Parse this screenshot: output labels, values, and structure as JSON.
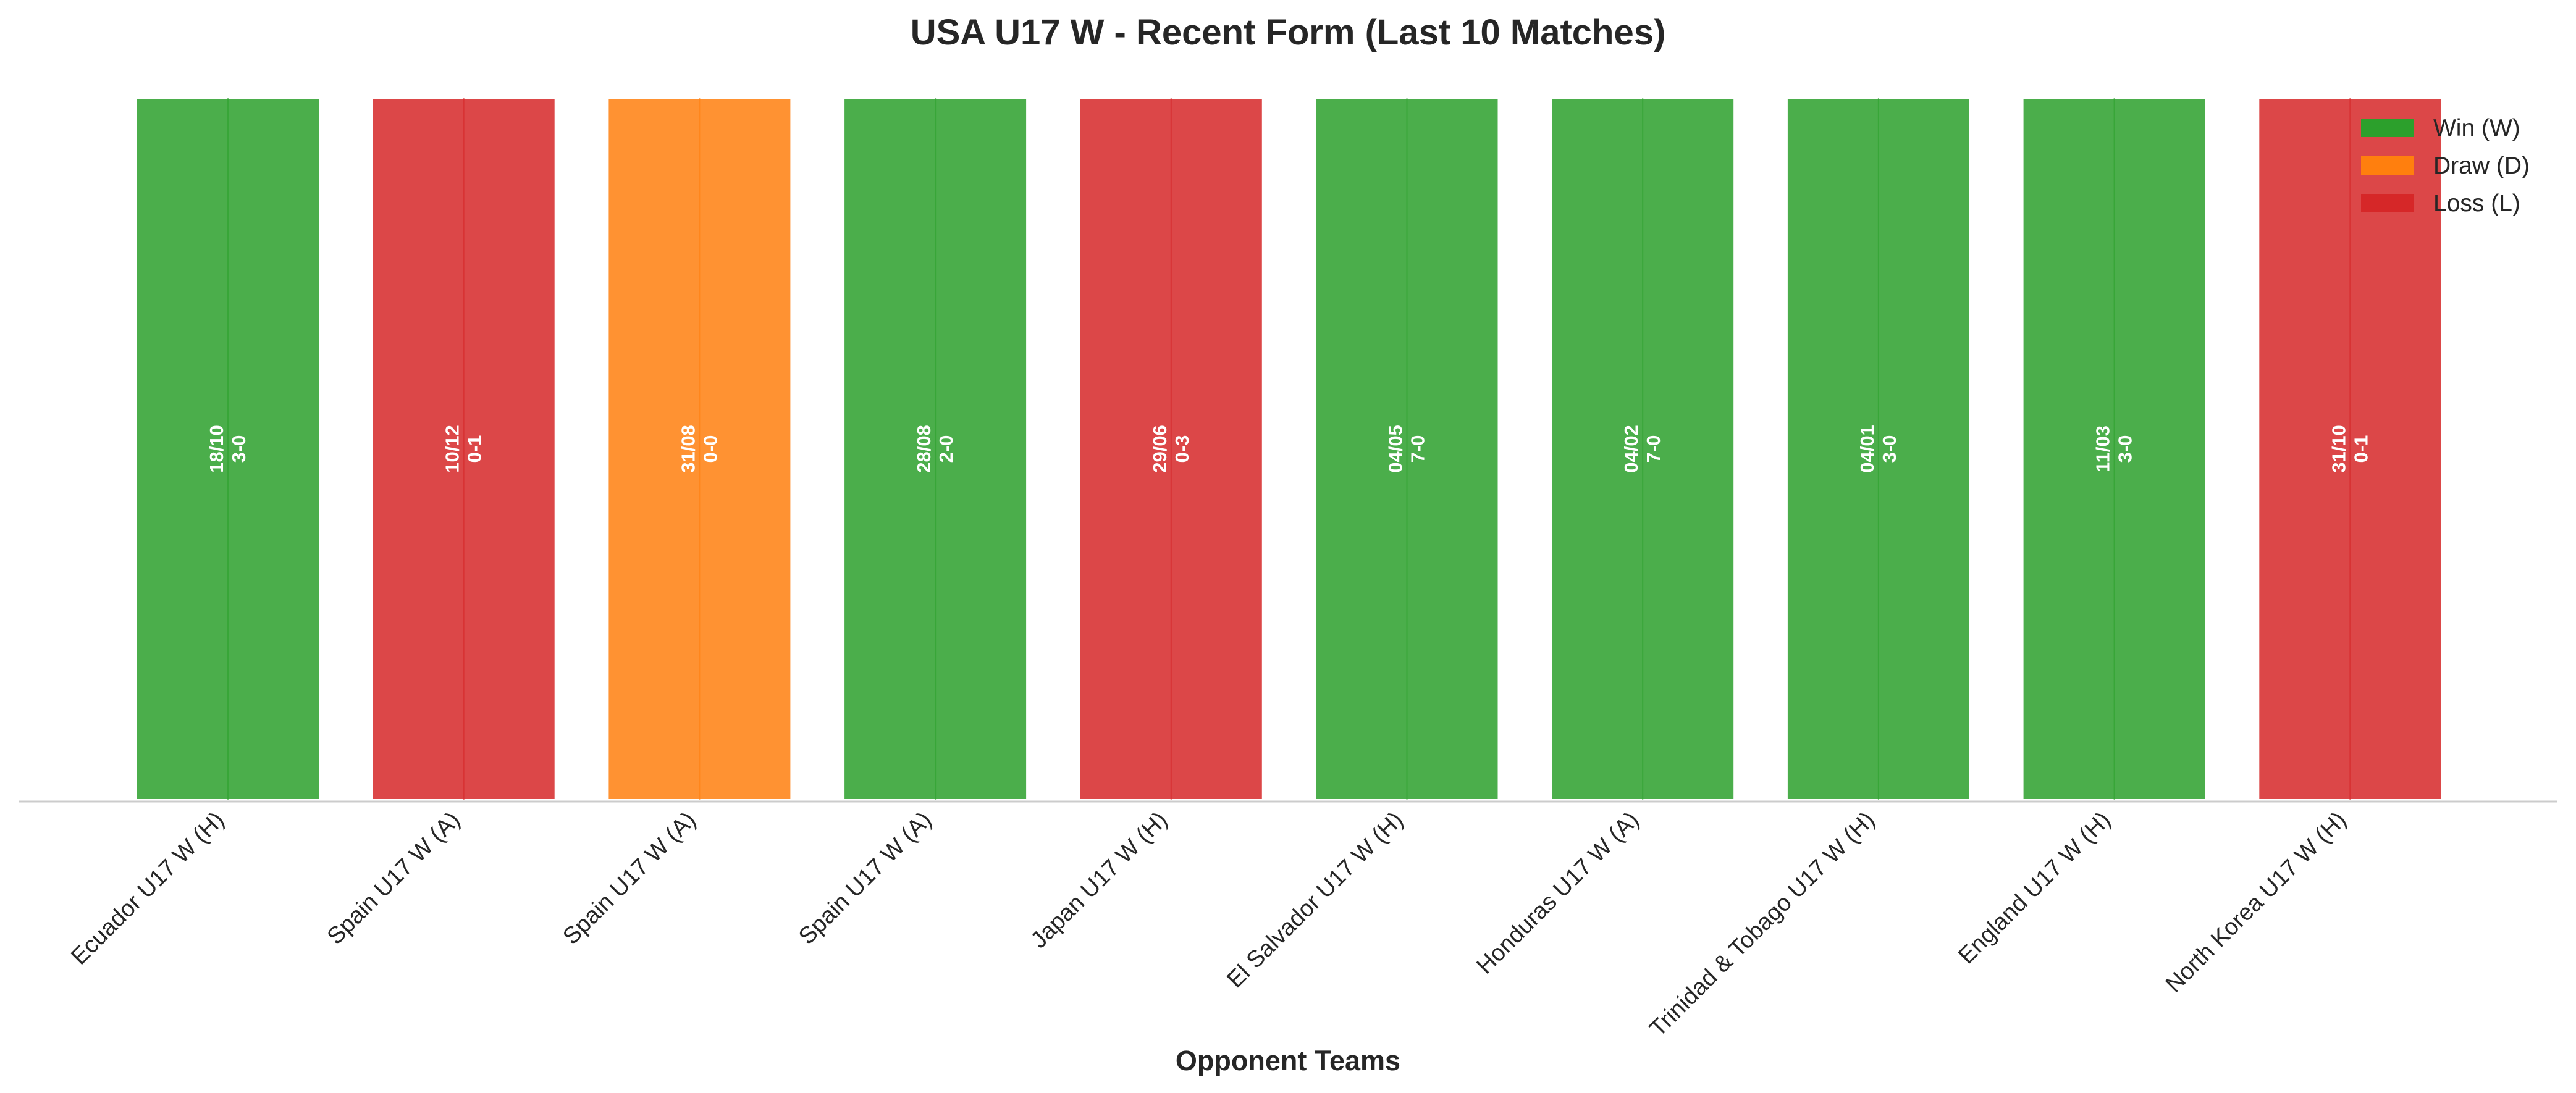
{
  "chart_data": {
    "type": "bar",
    "title": "USA U17 W - Recent Form (Last 10 Matches)",
    "xlabel": "Opponent Teams",
    "ylabel": "",
    "grid": false,
    "legend_position": "top-right",
    "categories": [
      "Ecuador U17 W (H)",
      "Spain U17 W (A)",
      "Spain U17 W (A)",
      "Spain U17 W (A)",
      "Japan U17 W (H)",
      "El Salvador U17 W (H)",
      "Honduras U17 W (A)",
      "Trinidad & Tobago U17 W (H)",
      "England U17 W (H)",
      "North Korea U17 W (H)"
    ],
    "values": [
      1,
      1,
      1,
      1,
      1,
      1,
      1,
      1,
      1,
      1
    ],
    "results": [
      "W",
      "L",
      "D",
      "W",
      "L",
      "W",
      "W",
      "W",
      "W",
      "L"
    ],
    "dates": [
      "18/10",
      "10/12",
      "31/08",
      "28/08",
      "29/06",
      "04/05",
      "04/02",
      "04/01",
      "11/03",
      "31/10"
    ],
    "scores": [
      "3-0",
      "0-1",
      "0-0",
      "2-0",
      "0-3",
      "7-0",
      "7-0",
      "3-0",
      "3-0",
      "0-1"
    ],
    "legend": [
      {
        "key": "W",
        "label": "Win (W)",
        "color": "#2ca02c"
      },
      {
        "key": "D",
        "label": "Draw (D)",
        "color": "#ff7f0e"
      },
      {
        "key": "L",
        "label": "Loss (L)",
        "color": "#d62728"
      }
    ]
  }
}
